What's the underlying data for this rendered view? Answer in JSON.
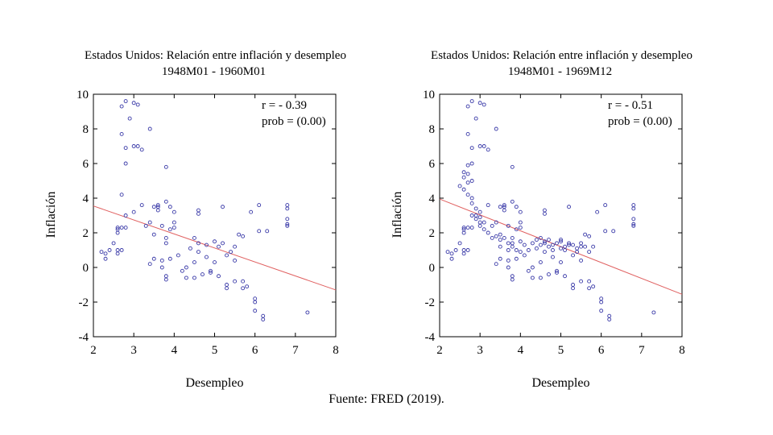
{
  "source_note": "Fuente: FRED (2019).",
  "chart_data": [
    {
      "type": "scatter",
      "title": "Estados Unidos: Relación entre inflación y desempleo",
      "subtitle": "1948M01 - 1960M01",
      "xlabel": "Desempleo",
      "ylabel": "Inflación",
      "xlim": [
        2,
        8
      ],
      "ylim": [
        -4,
        10
      ],
      "xticks": [
        2,
        3,
        4,
        5,
        6,
        7,
        8
      ],
      "yticks": [
        -4,
        -2,
        0,
        2,
        4,
        6,
        8,
        10
      ],
      "annotation": [
        "r = - 0.39",
        "prob = (0.00)"
      ],
      "marker_color": "#3a3aa8",
      "fit_color": "#e06060",
      "fit_line": {
        "x": [
          2,
          8
        ],
        "y": [
          3.55,
          -1.3
        ]
      },
      "points": [
        [
          2.2,
          0.9
        ],
        [
          2.3,
          0.5
        ],
        [
          2.3,
          0.8
        ],
        [
          2.4,
          1.0
        ],
        [
          2.5,
          1.4
        ],
        [
          2.6,
          0.8
        ],
        [
          2.6,
          1.0
        ],
        [
          2.6,
          2.0
        ],
        [
          2.6,
          2.2
        ],
        [
          2.6,
          2.3
        ],
        [
          2.7,
          2.3
        ],
        [
          2.7,
          1.0
        ],
        [
          2.7,
          4.2
        ],
        [
          2.7,
          7.7
        ],
        [
          2.7,
          9.3
        ],
        [
          2.8,
          9.6
        ],
        [
          2.8,
          6.9
        ],
        [
          2.8,
          6.0
        ],
        [
          2.8,
          3.0
        ],
        [
          2.8,
          2.3
        ],
        [
          2.9,
          8.6
        ],
        [
          3.0,
          9.5
        ],
        [
          3.0,
          7.0
        ],
        [
          3.1,
          9.4
        ],
        [
          3.1,
          7.0
        ],
        [
          3.2,
          6.8
        ],
        [
          3.2,
          3.6
        ],
        [
          3.0,
          3.2
        ],
        [
          3.3,
          2.4
        ],
        [
          3.4,
          8.0
        ],
        [
          3.4,
          2.6
        ],
        [
          3.5,
          1.9
        ],
        [
          3.5,
          3.5
        ],
        [
          3.5,
          0.5
        ],
        [
          3.4,
          0.2
        ],
        [
          3.6,
          3.5
        ],
        [
          3.6,
          3.6
        ],
        [
          3.6,
          3.3
        ],
        [
          3.7,
          2.4
        ],
        [
          3.7,
          0.4
        ],
        [
          3.7,
          0.0
        ],
        [
          3.8,
          1.7
        ],
        [
          3.8,
          1.4
        ],
        [
          3.8,
          3.8
        ],
        [
          3.8,
          5.8
        ],
        [
          3.8,
          -0.5
        ],
        [
          3.8,
          -0.7
        ],
        [
          3.9,
          3.5
        ],
        [
          3.9,
          2.2
        ],
        [
          3.9,
          0.5
        ],
        [
          4.0,
          2.3
        ],
        [
          4.0,
          3.2
        ],
        [
          4.0,
          2.6
        ],
        [
          4.1,
          0.7
        ],
        [
          4.2,
          -0.2
        ],
        [
          4.3,
          0.0
        ],
        [
          4.3,
          -0.6
        ],
        [
          4.4,
          1.1
        ],
        [
          4.5,
          1.7
        ],
        [
          4.5,
          0.3
        ],
        [
          4.5,
          -0.6
        ],
        [
          4.6,
          0.9
        ],
        [
          4.6,
          1.4
        ],
        [
          4.6,
          3.1
        ],
        [
          4.6,
          3.3
        ],
        [
          4.7,
          -0.4
        ],
        [
          4.8,
          1.3
        ],
        [
          4.8,
          0.6
        ],
        [
          4.9,
          -0.3
        ],
        [
          4.9,
          -0.2
        ],
        [
          5.0,
          1.5
        ],
        [
          5.0,
          0.3
        ],
        [
          5.1,
          1.2
        ],
        [
          5.1,
          -0.5
        ],
        [
          5.2,
          3.5
        ],
        [
          5.2,
          1.4
        ],
        [
          5.3,
          0.7
        ],
        [
          5.3,
          -1.0
        ],
        [
          5.3,
          -1.2
        ],
        [
          5.4,
          0.9
        ],
        [
          5.5,
          1.2
        ],
        [
          5.5,
          0.4
        ],
        [
          5.5,
          -0.8
        ],
        [
          5.6,
          1.9
        ],
        [
          5.7,
          1.8
        ],
        [
          5.7,
          -0.8
        ],
        [
          5.7,
          -1.2
        ],
        [
          5.8,
          -1.1
        ],
        [
          5.9,
          3.2
        ],
        [
          6.0,
          -1.8
        ],
        [
          6.0,
          -2.0
        ],
        [
          6.0,
          -2.5
        ],
        [
          6.1,
          2.1
        ],
        [
          6.1,
          3.6
        ],
        [
          6.2,
          -2.8
        ],
        [
          6.2,
          -3.0
        ],
        [
          6.3,
          2.1
        ],
        [
          6.8,
          3.4
        ],
        [
          6.8,
          3.6
        ],
        [
          6.8,
          2.8
        ],
        [
          6.8,
          2.5
        ],
        [
          6.8,
          2.4
        ],
        [
          7.3,
          -2.6
        ]
      ]
    },
    {
      "type": "scatter",
      "title": "Estados Unidos: Relación entre inflación y desempleo",
      "subtitle": "1948M01 - 1969M12",
      "xlabel": "Desempleo",
      "ylabel": "Inflación",
      "xlim": [
        2,
        8
      ],
      "ylim": [
        -4,
        10
      ],
      "xticks": [
        2,
        3,
        4,
        5,
        6,
        7,
        8
      ],
      "yticks": [
        -4,
        -2,
        0,
        2,
        4,
        6,
        8,
        10
      ],
      "annotation": [
        "r = - 0.51",
        "prob = (0.00)"
      ],
      "marker_color": "#3a3aa8",
      "fit_color": "#e06060",
      "fit_line": {
        "x": [
          2,
          8
        ],
        "y": [
          3.95,
          -1.55
        ]
      },
      "points": [
        [
          2.2,
          0.9
        ],
        [
          2.3,
          0.5
        ],
        [
          2.3,
          0.8
        ],
        [
          2.4,
          1.0
        ],
        [
          2.5,
          1.4
        ],
        [
          2.6,
          0.8
        ],
        [
          2.6,
          1.0
        ],
        [
          2.6,
          2.0
        ],
        [
          2.6,
          2.2
        ],
        [
          2.6,
          2.3
        ],
        [
          2.7,
          2.3
        ],
        [
          2.7,
          1.0
        ],
        [
          2.7,
          4.2
        ],
        [
          2.7,
          7.7
        ],
        [
          2.7,
          9.3
        ],
        [
          2.8,
          9.6
        ],
        [
          2.8,
          6.9
        ],
        [
          2.8,
          6.0
        ],
        [
          2.8,
          3.0
        ],
        [
          2.8,
          2.3
        ],
        [
          2.9,
          8.6
        ],
        [
          3.0,
          9.5
        ],
        [
          3.0,
          7.0
        ],
        [
          3.1,
          9.4
        ],
        [
          3.1,
          7.0
        ],
        [
          3.2,
          6.8
        ],
        [
          3.2,
          3.6
        ],
        [
          3.0,
          3.2
        ],
        [
          3.3,
          2.4
        ],
        [
          3.4,
          8.0
        ],
        [
          3.4,
          2.6
        ],
        [
          3.5,
          1.9
        ],
        [
          3.5,
          3.5
        ],
        [
          3.5,
          0.5
        ],
        [
          3.4,
          0.2
        ],
        [
          3.6,
          3.5
        ],
        [
          3.6,
          3.6
        ],
        [
          3.6,
          3.3
        ],
        [
          3.7,
          2.4
        ],
        [
          3.7,
          0.4
        ],
        [
          3.7,
          0.0
        ],
        [
          3.8,
          1.7
        ],
        [
          3.8,
          1.4
        ],
        [
          3.8,
          3.8
        ],
        [
          3.8,
          5.8
        ],
        [
          3.8,
          -0.5
        ],
        [
          3.8,
          -0.7
        ],
        [
          3.9,
          3.5
        ],
        [
          3.9,
          2.2
        ],
        [
          3.9,
          0.5
        ],
        [
          4.0,
          2.3
        ],
        [
          4.0,
          3.2
        ],
        [
          4.0,
          2.6
        ],
        [
          4.1,
          0.7
        ],
        [
          4.2,
          -0.2
        ],
        [
          4.3,
          0.0
        ],
        [
          4.3,
          -0.6
        ],
        [
          4.4,
          1.1
        ],
        [
          4.5,
          1.7
        ],
        [
          4.5,
          0.3
        ],
        [
          4.5,
          -0.6
        ],
        [
          4.6,
          0.9
        ],
        [
          4.6,
          1.4
        ],
        [
          4.6,
          3.1
        ],
        [
          4.6,
          3.3
        ],
        [
          4.7,
          -0.4
        ],
        [
          4.8,
          1.3
        ],
        [
          4.8,
          0.6
        ],
        [
          4.9,
          -0.3
        ],
        [
          4.9,
          -0.2
        ],
        [
          5.0,
          1.5
        ],
        [
          5.0,
          0.3
        ],
        [
          5.1,
          1.2
        ],
        [
          5.1,
          -0.5
        ],
        [
          5.2,
          3.5
        ],
        [
          5.2,
          1.4
        ],
        [
          5.3,
          0.7
        ],
        [
          5.3,
          -1.0
        ],
        [
          5.3,
          -1.2
        ],
        [
          5.4,
          0.9
        ],
        [
          5.5,
          1.2
        ],
        [
          5.5,
          0.4
        ],
        [
          5.5,
          -0.8
        ],
        [
          5.6,
          1.9
        ],
        [
          5.7,
          1.8
        ],
        [
          5.7,
          -0.8
        ],
        [
          5.7,
          -1.2
        ],
        [
          5.8,
          -1.1
        ],
        [
          5.9,
          3.2
        ],
        [
          6.0,
          -1.8
        ],
        [
          6.0,
          -2.0
        ],
        [
          6.0,
          -2.5
        ],
        [
          6.1,
          2.1
        ],
        [
          6.1,
          3.6
        ],
        [
          6.2,
          -2.8
        ],
        [
          6.2,
          -3.0
        ],
        [
          6.3,
          2.1
        ],
        [
          6.8,
          3.4
        ],
        [
          6.8,
          3.6
        ],
        [
          6.8,
          2.8
        ],
        [
          6.8,
          2.5
        ],
        [
          6.8,
          2.4
        ],
        [
          7.3,
          -2.6
        ],
        [
          2.5,
          4.7
        ],
        [
          2.6,
          4.5
        ],
        [
          2.6,
          5.2
        ],
        [
          2.6,
          5.5
        ],
        [
          2.7,
          5.4
        ],
        [
          2.7,
          5.9
        ],
        [
          2.7,
          4.9
        ],
        [
          2.8,
          5.0
        ],
        [
          2.8,
          4.0
        ],
        [
          2.8,
          3.7
        ],
        [
          2.9,
          3.4
        ],
        [
          2.9,
          3.0
        ],
        [
          2.9,
          2.8
        ],
        [
          3.0,
          2.9
        ],
        [
          3.0,
          2.6
        ],
        [
          3.0,
          2.4
        ],
        [
          3.1,
          2.2
        ],
        [
          3.1,
          2.6
        ],
        [
          3.2,
          2.0
        ],
        [
          3.3,
          1.7
        ],
        [
          3.4,
          1.8
        ],
        [
          3.5,
          1.6
        ],
        [
          3.5,
          1.2
        ],
        [
          3.6,
          1.7
        ],
        [
          3.7,
          1.4
        ],
        [
          3.7,
          1.0
        ],
        [
          3.8,
          1.2
        ],
        [
          3.9,
          1.0
        ],
        [
          4.0,
          1.5
        ],
        [
          4.0,
          0.9
        ],
        [
          4.1,
          1.3
        ],
        [
          4.2,
          1.0
        ],
        [
          4.3,
          1.4
        ],
        [
          4.4,
          1.6
        ],
        [
          4.5,
          1.3
        ],
        [
          4.6,
          1.5
        ],
        [
          4.7,
          1.6
        ],
        [
          4.7,
          1.2
        ],
        [
          4.8,
          1.0
        ],
        [
          4.9,
          1.4
        ],
        [
          5.0,
          1.1
        ],
        [
          5.0,
          1.6
        ],
        [
          5.1,
          1.0
        ],
        [
          5.2,
          1.3
        ],
        [
          5.3,
          1.3
        ],
        [
          5.4,
          1.1
        ],
        [
          5.5,
          1.4
        ],
        [
          5.6,
          1.2
        ],
        [
          5.7,
          0.9
        ],
        [
          5.8,
          1.2
        ]
      ]
    }
  ]
}
